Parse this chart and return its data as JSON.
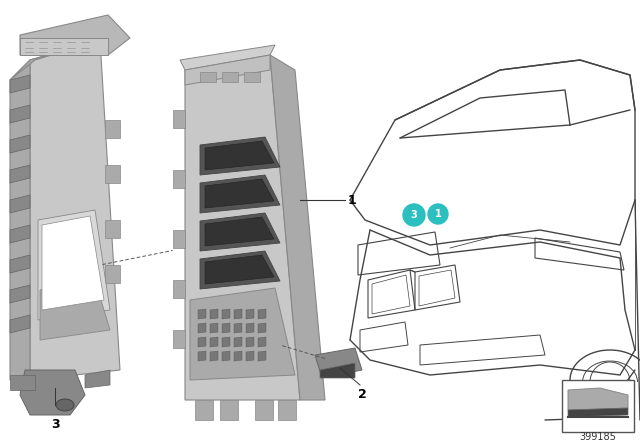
{
  "bg_color": "#ffffff",
  "part_number": "399185",
  "teal": "#2BBFBF",
  "dark_teal": "#1A9090",
  "gray_light": "#c8c8c8",
  "gray_mid": "#aaaaaa",
  "gray_dark": "#888888",
  "gray_darker": "#666666",
  "gray_very_dark": "#444444",
  "line_col": "#333333",
  "car_line": "#444444",
  "label_font": 9,
  "part_label_font": 8
}
